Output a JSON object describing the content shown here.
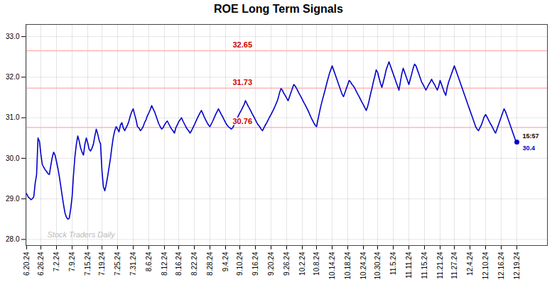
{
  "chart_data": {
    "type": "line",
    "title": "ROE Long Term Signals",
    "color": "#0000cc",
    "categories": [
      "6.20.24",
      null,
      null,
      null,
      null,
      null,
      null,
      null,
      null,
      null,
      "6.26.24",
      null,
      null,
      null,
      null,
      null,
      null,
      null,
      null,
      null,
      null,
      "7.2.24",
      null,
      null,
      null,
      null,
      null,
      null,
      null,
      null,
      null,
      null,
      "7.9.24",
      null,
      null,
      null,
      null,
      null,
      null,
      null,
      null,
      null,
      null,
      "7.15.24",
      null,
      null,
      null,
      null,
      null,
      null,
      null,
      null,
      null,
      "7.19.24",
      null,
      null,
      null,
      null,
      null,
      null,
      null,
      null,
      null,
      null,
      "7.25.24",
      null,
      null,
      null,
      null,
      null,
      null,
      null,
      null,
      null,
      null,
      "7.31.24",
      null,
      null,
      null,
      null,
      null,
      null,
      null,
      null,
      null,
      null,
      "8.6.24",
      null,
      null,
      null,
      null,
      null,
      null,
      null,
      null,
      null,
      null,
      "8.12.24",
      null,
      null,
      null,
      null,
      null,
      null,
      null,
      null,
      null,
      "8.16.24",
      null,
      null,
      null,
      null,
      null,
      null,
      null,
      null,
      null,
      null,
      "8.22.24",
      null,
      null,
      null,
      null,
      null,
      null,
      null,
      null,
      null,
      null,
      "8.28.24",
      null,
      null,
      null,
      null,
      null,
      null,
      null,
      null,
      null,
      null,
      "9.4.24",
      null,
      null,
      null,
      null,
      null,
      null,
      null,
      null,
      null,
      "9.10.24",
      null,
      null,
      null,
      null,
      null,
      null,
      null,
      null,
      null,
      null,
      "9.16.24",
      null,
      null,
      null,
      null,
      null,
      null,
      null,
      null,
      null,
      null,
      "9.20.24",
      null,
      null,
      null,
      null,
      null,
      null,
      null,
      null,
      null,
      null,
      "9.26.24",
      null,
      null,
      null,
      null,
      null,
      null,
      null,
      null,
      null,
      null,
      "10.2.24",
      null,
      null,
      null,
      null,
      null,
      null,
      null,
      null,
      null,
      "10.8.24",
      null,
      null,
      null,
      null,
      null,
      null,
      null,
      null,
      null,
      null,
      "10.14.24",
      null,
      null,
      null,
      null,
      null,
      null,
      null,
      null,
      null,
      null,
      "10.18.24",
      null,
      null,
      null,
      null,
      null,
      null,
      null,
      null,
      null,
      null,
      "10.24.24",
      null,
      null,
      null,
      null,
      null,
      null,
      null,
      null,
      null,
      "10.30.24",
      null,
      null,
      null,
      null,
      null,
      null,
      null,
      null,
      null,
      null,
      "11.5.24",
      null,
      null,
      null,
      null,
      null,
      null,
      null,
      null,
      null,
      null,
      "11.11.24",
      null,
      null,
      null,
      null,
      null,
      null,
      null,
      null,
      null,
      null,
      "11.15.24",
      null,
      null,
      null,
      null,
      null,
      null,
      null,
      null,
      null,
      null,
      "11.21.24",
      null,
      null,
      null,
      null,
      null,
      null,
      null,
      null,
      null,
      "11.27.24",
      null,
      null,
      null,
      null,
      null,
      null,
      null,
      null,
      null,
      null,
      "12.4.24",
      null,
      null,
      null,
      null,
      null,
      null,
      null,
      null,
      null,
      null,
      "12.10.24",
      null,
      null,
      null,
      null,
      null,
      null,
      null,
      null,
      null,
      null,
      "12.16.24",
      null,
      null,
      null,
      null,
      null,
      null,
      null,
      null,
      null,
      null,
      "12.19.24"
    ],
    "values": [
      29.13,
      29.05,
      29.02,
      28.98,
      29.0,
      29.05,
      29.38,
      29.6,
      30.5,
      30.42,
      30.1,
      29.85,
      29.78,
      29.72,
      29.68,
      29.62,
      29.6,
      29.82,
      30.02,
      30.15,
      30.08,
      29.92,
      29.75,
      29.55,
      29.32,
      29.08,
      28.85,
      28.65,
      28.55,
      28.5,
      28.52,
      28.75,
      29.05,
      29.6,
      30.05,
      30.35,
      30.55,
      30.42,
      30.25,
      30.15,
      30.08,
      30.35,
      30.5,
      30.38,
      30.22,
      30.18,
      30.25,
      30.35,
      30.55,
      30.72,
      30.6,
      30.45,
      30.35,
      29.7,
      29.3,
      29.2,
      29.35,
      29.55,
      29.78,
      30.0,
      30.28,
      30.52,
      30.68,
      30.78,
      30.72,
      30.65,
      30.82,
      30.88,
      30.75,
      30.68,
      30.75,
      30.82,
      30.92,
      31.05,
      31.15,
      31.22,
      31.08,
      30.95,
      30.78,
      30.75,
      30.68,
      30.72,
      30.78,
      30.88,
      30.95,
      31.05,
      31.12,
      31.2,
      31.3,
      31.22,
      31.15,
      31.05,
      30.95,
      30.85,
      30.78,
      30.72,
      30.75,
      30.82,
      30.88,
      30.92,
      30.85,
      30.78,
      30.72,
      30.68,
      30.62,
      30.75,
      30.82,
      30.9,
      30.95,
      31.0,
      30.92,
      30.85,
      30.78,
      30.72,
      30.68,
      30.62,
      30.68,
      30.75,
      30.82,
      30.9,
      30.98,
      31.05,
      31.12,
      31.18,
      31.1,
      31.02,
      30.95,
      30.88,
      30.82,
      30.78,
      30.85,
      30.92,
      31.0,
      31.08,
      31.15,
      31.22,
      31.15,
      31.08,
      31.02,
      30.95,
      30.88,
      30.82,
      30.78,
      30.75,
      30.72,
      30.75,
      30.82,
      30.88,
      30.95,
      31.05,
      31.12,
      31.18,
      31.25,
      31.32,
      31.42,
      31.35,
      31.28,
      31.22,
      31.15,
      31.08,
      31.02,
      30.95,
      30.88,
      30.82,
      30.78,
      30.72,
      30.68,
      30.75,
      30.82,
      30.88,
      30.95,
      31.02,
      31.08,
      31.15,
      31.22,
      31.3,
      31.38,
      31.48,
      31.62,
      31.72,
      31.68,
      31.6,
      31.55,
      31.48,
      31.42,
      31.52,
      31.62,
      31.72,
      31.82,
      31.78,
      31.72,
      31.65,
      31.58,
      31.52,
      31.45,
      31.38,
      31.32,
      31.25,
      31.18,
      31.1,
      31.02,
      30.95,
      30.88,
      30.82,
      30.78,
      30.95,
      31.12,
      31.28,
      31.42,
      31.55,
      31.68,
      31.82,
      31.95,
      32.08,
      32.18,
      32.28,
      32.18,
      32.08,
      31.98,
      31.88,
      31.78,
      31.68,
      31.58,
      31.52,
      31.62,
      31.72,
      31.82,
      31.92,
      31.88,
      31.82,
      31.78,
      31.72,
      31.65,
      31.58,
      31.52,
      31.45,
      31.38,
      31.32,
      31.25,
      31.18,
      31.28,
      31.42,
      31.58,
      31.72,
      31.88,
      32.02,
      32.18,
      32.12,
      31.98,
      31.85,
      31.75,
      31.88,
      32.02,
      32.18,
      32.28,
      32.38,
      32.28,
      32.18,
      32.08,
      31.98,
      31.88,
      31.78,
      31.68,
      31.88,
      32.08,
      32.22,
      32.12,
      32.02,
      31.92,
      31.82,
      31.95,
      32.08,
      32.22,
      32.32,
      32.28,
      32.18,
      32.08,
      31.98,
      31.88,
      31.82,
      31.75,
      31.68,
      31.75,
      31.82,
      31.88,
      31.95,
      31.88,
      31.82,
      31.75,
      31.68,
      31.78,
      31.92,
      31.82,
      31.72,
      31.62,
      31.55,
      31.75,
      31.88,
      31.98,
      32.08,
      32.18,
      32.28,
      32.18,
      32.08,
      31.98,
      31.88,
      31.78,
      31.68,
      31.58,
      31.48,
      31.38,
      31.28,
      31.18,
      31.08,
      30.98,
      30.88,
      30.78,
      30.72,
      30.68,
      30.75,
      30.82,
      30.92,
      31.02,
      31.08,
      31.02,
      30.95,
      30.88,
      30.82,
      30.75,
      30.68,
      30.62,
      30.72,
      30.82,
      30.92,
      31.02,
      31.12,
      31.22,
      31.15,
      31.05,
      30.95,
      30.85,
      30.75,
      30.65,
      30.55,
      30.45,
      30.4
    ],
    "ylim": [
      27.85,
      33.3
    ],
    "yticks": [
      28,
      29,
      30,
      31,
      32,
      33
    ],
    "grid": true,
    "hlines": [
      {
        "value": 30.76,
        "label": "30.76"
      },
      {
        "value": 31.73,
        "label": "31.73"
      },
      {
        "value": 32.65,
        "label": "32.65"
      }
    ],
    "hline_color": "#ffaaaa",
    "hline_label_color": "#cc0000",
    "last_point": {
      "value": 30.4,
      "label": "30.4",
      "time": "15:57",
      "color": "#0000cc"
    },
    "watermark": "Stock Traders Daily",
    "watermark_color": "#bbbbbb"
  }
}
